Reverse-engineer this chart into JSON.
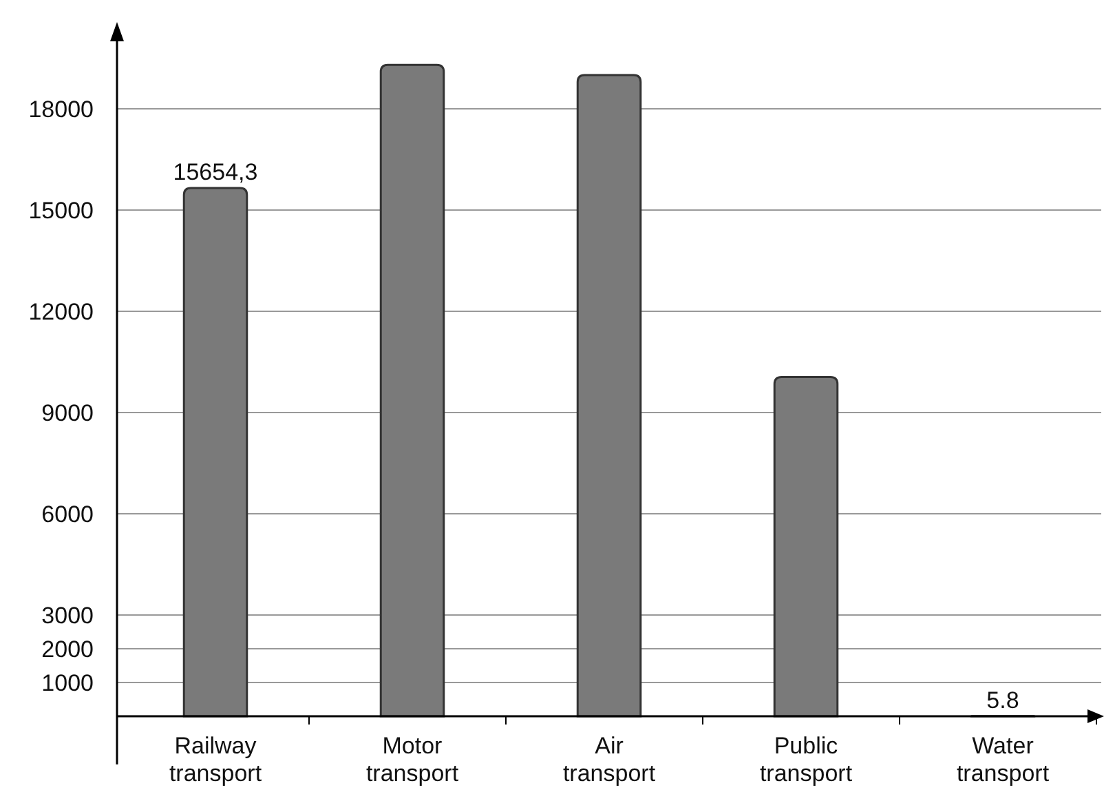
{
  "chart_data": {
    "type": "bar",
    "categories": [
      "Railway transport",
      "Motor transport",
      "Air transport",
      "Public transport",
      "Water transport"
    ],
    "values": [
      15654.3,
      19300,
      19000,
      10050,
      5.8
    ],
    "value_labels": [
      "15654,3",
      null,
      null,
      null,
      "5.8"
    ],
    "color": "#7a7a7a",
    "ylim": [
      0,
      20000
    ],
    "yticks": [
      1000,
      2000,
      3000,
      6000,
      9000,
      12000,
      15000,
      18000
    ],
    "grid": "y"
  }
}
